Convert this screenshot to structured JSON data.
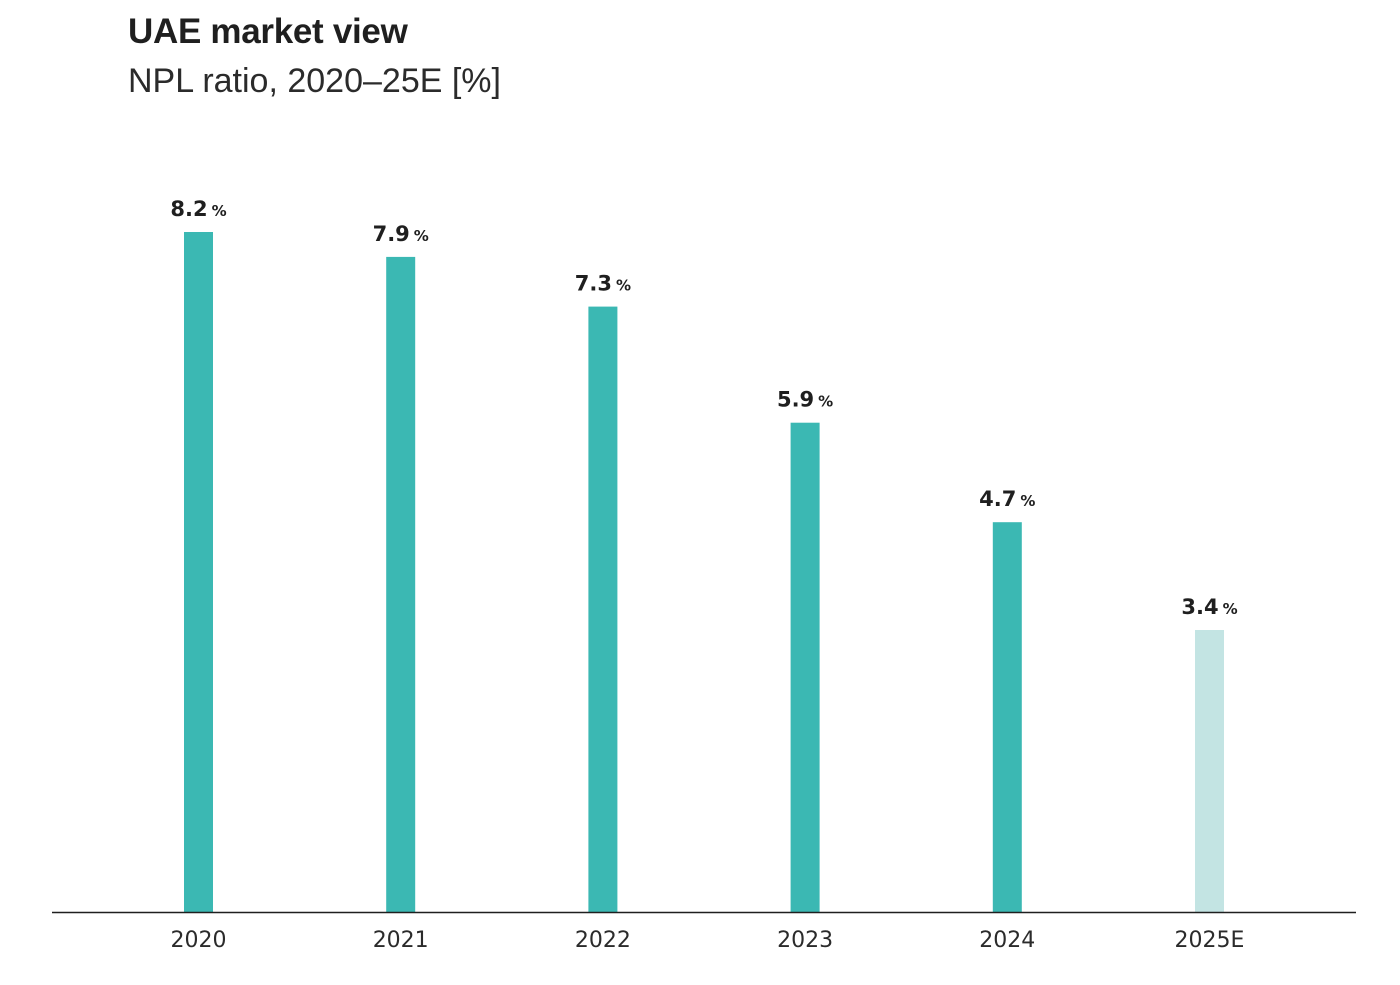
{
  "title": "UAE market view",
  "subtitle": "NPL ratio, 2020–25E [%]",
  "colors": {
    "actual": "#3bb8b3",
    "estimate": "#c3e4e3",
    "axis": "#1f1f1f",
    "text": "#1f1f1f"
  },
  "chart_data": {
    "type": "bar",
    "title": "UAE market view",
    "subtitle": "NPL ratio, 2020–25E [%]",
    "categories": [
      "2020",
      "2021",
      "2022",
      "2023",
      "2024",
      "2025E"
    ],
    "values": [
      8.2,
      7.9,
      7.3,
      5.9,
      4.7,
      3.4
    ],
    "value_labels": [
      "8.2",
      "7.9",
      "7.3",
      "5.9",
      "4.7",
      "3.4"
    ],
    "value_suffix": "%",
    "estimate_flags": [
      false,
      false,
      false,
      false,
      false,
      true
    ],
    "ylim": [
      0,
      8.2
    ],
    "xlabel": "",
    "ylabel": "",
    "grid": false,
    "legend": "none"
  }
}
